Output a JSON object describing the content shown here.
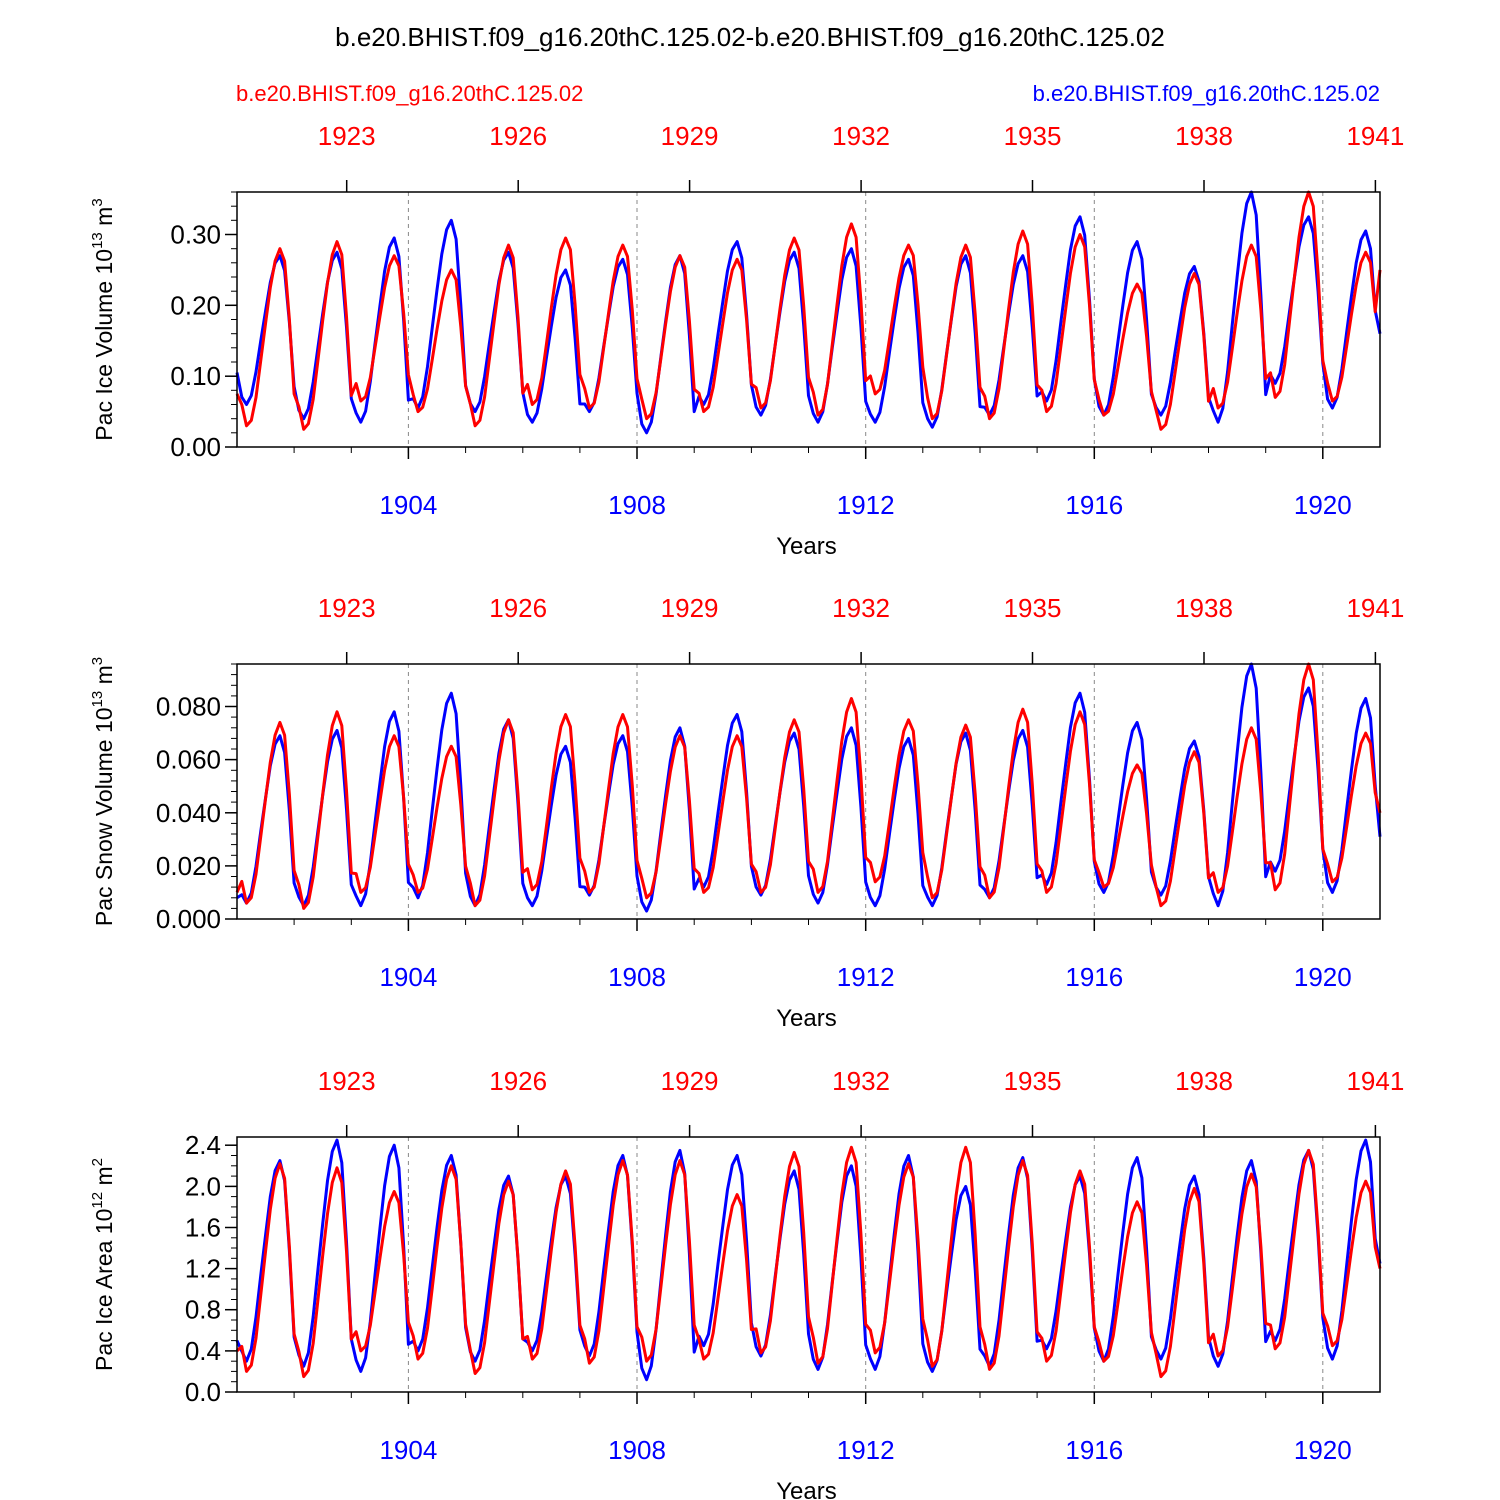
{
  "figure": {
    "title": "b.e20.BHIST.f09_g16.20thC.125.02-b.e20.BHIST.f09_g16.20thC.125.02",
    "case_red": "b.e20.BHIST.f09_g16.20thC.125.02",
    "case_blue": "b.e20.BHIST.f09_g16.20thC.125.02",
    "colors": {
      "red": "#ff0000",
      "blue": "#0000ff",
      "axis": "#000000",
      "grid": "#888888"
    }
  },
  "chart_data": [
    {
      "type": "line",
      "ylabel_main": "Pac Ice Volume 10",
      "ylabel_sup": "13",
      "ylabel_unit": " m",
      "ylabel_unit_sup": "3",
      "xlabel": "Years",
      "xlim": [
        1901,
        1921
      ],
      "ylim": [
        0,
        0.36
      ],
      "yticks": [
        0.0,
        0.1,
        0.2,
        0.3
      ],
      "yticklabels": [
        "0.00",
        "0.10",
        "0.20",
        "0.30"
      ],
      "yminor": 0.02,
      "bottom_xticks": [
        1904,
        1908,
        1912,
        1916,
        1920
      ],
      "bottom_xticklabels": [
        "1904",
        "1908",
        "1912",
        "1916",
        "1920"
      ],
      "top_xticks": [
        1902.92,
        1905.92,
        1908.92,
        1911.92,
        1914.92,
        1917.92,
        1920.92
      ],
      "top_xticklabels": [
        "1923",
        "1926",
        "1929",
        "1932",
        "1935",
        "1938",
        "1941"
      ],
      "series": [
        {
          "name": "b.e20.BHIST.f09_g16.20thC.125.02 (blue)",
          "color": "blue",
          "mins": [
            0.06,
            0.04,
            0.035,
            0.055,
            0.05,
            0.035,
            0.05,
            0.02,
            0.06,
            0.045,
            0.035,
            0.035,
            0.028,
            0.045,
            0.065,
            0.045,
            0.045,
            0.035,
            0.09,
            0.055
          ],
          "maxs": [
            0.27,
            0.275,
            0.295,
            0.32,
            0.275,
            0.25,
            0.265,
            0.27,
            0.29,
            0.275,
            0.28,
            0.265,
            0.27,
            0.27,
            0.325,
            0.29,
            0.255,
            0.36,
            0.325,
            0.305
          ],
          "start": 0.105,
          "end": 0.16
        },
        {
          "name": "b.e20.BHIST.f09_g16.20thC.125.02 (red)",
          "color": "red",
          "mins": [
            0.03,
            0.025,
            0.065,
            0.05,
            0.03,
            0.06,
            0.055,
            0.04,
            0.05,
            0.055,
            0.045,
            0.075,
            0.04,
            0.04,
            0.05,
            0.045,
            0.025,
            0.055,
            0.07,
            0.065
          ],
          "maxs": [
            0.28,
            0.29,
            0.27,
            0.25,
            0.285,
            0.295,
            0.285,
            0.27,
            0.265,
            0.295,
            0.315,
            0.285,
            0.285,
            0.305,
            0.3,
            0.23,
            0.245,
            0.285,
            0.36,
            0.275
          ],
          "start": 0.075,
          "end": 0.25
        }
      ]
    },
    {
      "type": "line",
      "ylabel_main": "Pac Snow Volume 10",
      "ylabel_sup": "13",
      "ylabel_unit": " m",
      "ylabel_unit_sup": "3",
      "xlabel": "Years",
      "xlim": [
        1901,
        1921
      ],
      "ylim": [
        0,
        0.096
      ],
      "yticks": [
        0.0,
        0.02,
        0.04,
        0.06,
        0.08
      ],
      "yticklabels": [
        "0.000",
        "0.020",
        "0.040",
        "0.060",
        "0.080"
      ],
      "yminor": 0.004,
      "bottom_xticks": [
        1904,
        1908,
        1912,
        1916,
        1920
      ],
      "bottom_xticklabels": [
        "1904",
        "1908",
        "1912",
        "1916",
        "1920"
      ],
      "top_xticks": [
        1902.92,
        1905.92,
        1908.92,
        1911.92,
        1914.92,
        1917.92,
        1920.92
      ],
      "top_xticklabels": [
        "1923",
        "1926",
        "1929",
        "1932",
        "1935",
        "1938",
        "1941"
      ],
      "series": [
        {
          "name": "b.e20.BHIST.f09_g16.20thC.125.02 (blue)",
          "color": "blue",
          "mins": [
            0.006,
            0.005,
            0.005,
            0.008,
            0.005,
            0.005,
            0.009,
            0.003,
            0.012,
            0.009,
            0.006,
            0.005,
            0.005,
            0.008,
            0.013,
            0.01,
            0.009,
            0.005,
            0.018,
            0.01
          ],
          "maxs": [
            0.069,
            0.071,
            0.078,
            0.085,
            0.075,
            0.065,
            0.069,
            0.072,
            0.077,
            0.07,
            0.072,
            0.068,
            0.07,
            0.071,
            0.085,
            0.074,
            0.067,
            0.096,
            0.087,
            0.083
          ],
          "start": 0.008,
          "end": 0.031
        },
        {
          "name": "b.e20.BHIST.f09_g16.20thC.125.02 (red)",
          "color": "red",
          "mins": [
            0.006,
            0.004,
            0.01,
            0.01,
            0.005,
            0.011,
            0.01,
            0.008,
            0.01,
            0.01,
            0.01,
            0.014,
            0.008,
            0.008,
            0.01,
            0.012,
            0.005,
            0.01,
            0.011,
            0.014
          ],
          "maxs": [
            0.074,
            0.078,
            0.069,
            0.065,
            0.075,
            0.077,
            0.077,
            0.069,
            0.069,
            0.075,
            0.083,
            0.075,
            0.073,
            0.079,
            0.078,
            0.058,
            0.063,
            0.072,
            0.096,
            0.07
          ],
          "start": 0.01,
          "end": 0.04
        }
      ]
    },
    {
      "type": "line",
      "ylabel_main": "Pac Ice Area 10",
      "ylabel_sup": "12",
      "ylabel_unit": " m",
      "ylabel_unit_sup": "2",
      "xlabel": "Years",
      "xlim": [
        1901,
        1921
      ],
      "ylim": [
        0,
        2.48
      ],
      "yticks": [
        0.0,
        0.4,
        0.8,
        1.2,
        1.6,
        2.0,
        2.4
      ],
      "yticklabels": [
        "0.0",
        "0.4",
        "0.8",
        "1.2",
        "1.6",
        "2.0",
        "2.4"
      ],
      "yminor": 0.1,
      "bottom_xticks": [
        1904,
        1908,
        1912,
        1916,
        1920
      ],
      "bottom_xticklabels": [
        "1904",
        "1908",
        "1912",
        "1916",
        "1920"
      ],
      "top_xticks": [
        1902.92,
        1905.92,
        1908.92,
        1911.92,
        1914.92,
        1917.92,
        1920.92
      ],
      "top_xticklabels": [
        "1923",
        "1926",
        "1929",
        "1932",
        "1935",
        "1938",
        "1941"
      ],
      "series": [
        {
          "name": "b.e20.BHIST.f09_g16.20thC.125.02 (blue)",
          "color": "blue",
          "mins": [
            0.3,
            0.25,
            0.2,
            0.4,
            0.3,
            0.4,
            0.35,
            0.12,
            0.45,
            0.35,
            0.22,
            0.22,
            0.2,
            0.25,
            0.42,
            0.3,
            0.32,
            0.25,
            0.5,
            0.32
          ],
          "maxs": [
            2.25,
            2.45,
            2.4,
            2.3,
            2.1,
            2.1,
            2.3,
            2.35,
            2.3,
            2.15,
            2.2,
            2.3,
            2.0,
            2.28,
            2.1,
            2.28,
            2.1,
            2.25,
            2.35,
            2.45
          ],
          "start": 0.5,
          "end": 1.25
        },
        {
          "name": "b.e20.BHIST.f09_g16.20thC.125.02 (red)",
          "color": "red",
          "mins": [
            0.2,
            0.15,
            0.4,
            0.32,
            0.18,
            0.32,
            0.28,
            0.3,
            0.32,
            0.38,
            0.28,
            0.38,
            0.25,
            0.22,
            0.3,
            0.3,
            0.15,
            0.35,
            0.42,
            0.45
          ],
          "maxs": [
            2.22,
            2.18,
            1.95,
            2.2,
            2.05,
            2.15,
            2.25,
            2.25,
            1.92,
            2.33,
            2.38,
            2.22,
            2.38,
            2.25,
            2.15,
            1.85,
            1.98,
            2.12,
            2.35,
            2.05
          ],
          "start": 0.4,
          "end": 1.2
        }
      ]
    }
  ]
}
